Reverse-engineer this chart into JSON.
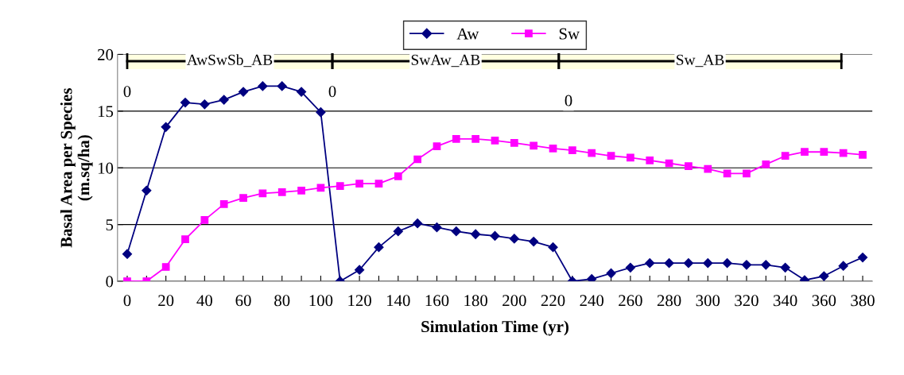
{
  "chart_data": {
    "type": "line",
    "xlabel": "Simulation Time (yr)",
    "ylabel": "Basal Area per Species\n(m.sq/ha)",
    "x": [
      0,
      10,
      20,
      30,
      40,
      50,
      60,
      70,
      80,
      90,
      100,
      110,
      120,
      130,
      140,
      150,
      160,
      170,
      180,
      190,
      200,
      210,
      220,
      230,
      240,
      250,
      260,
      270,
      280,
      290,
      300,
      310,
      320,
      330,
      340,
      350,
      360,
      370,
      380
    ],
    "series": [
      {
        "name": "Aw",
        "color": "#000080",
        "marker": "diamond",
        "values": [
          2.4,
          8.0,
          13.6,
          15.75,
          15.6,
          16.0,
          16.7,
          17.2,
          17.2,
          16.7,
          14.9,
          0,
          1.0,
          3.0,
          4.4,
          5.1,
          4.75,
          4.4,
          4.15,
          4.0,
          3.75,
          3.5,
          3.0,
          0,
          0.2,
          0.7,
          1.2,
          1.6,
          1.6,
          1.6,
          1.6,
          1.6,
          1.45,
          1.45,
          1.2,
          0.1,
          0.45,
          1.35,
          2.1
        ]
      },
      {
        "name": "Sw",
        "color": "#ff00ff",
        "marker": "square",
        "values": [
          0,
          0,
          1.26,
          3.7,
          5.4,
          6.8,
          7.35,
          7.75,
          7.85,
          8.0,
          8.24,
          8.4,
          8.6,
          8.6,
          9.25,
          10.75,
          11.9,
          12.55,
          12.55,
          12.4,
          12.2,
          11.95,
          11.7,
          11.55,
          11.3,
          11.05,
          10.9,
          10.65,
          10.4,
          10.15,
          9.9,
          9.5,
          9.5,
          10.3,
          11.05,
          11.4,
          11.4,
          11.3,
          11.15
        ]
      }
    ],
    "xlim": [
      -5,
      385
    ],
    "xticks": [
      0,
      {
        "value": 10,
        "label": null
      },
      20,
      {
        "value": 30,
        "label": null
      },
      40,
      {
        "value": 50,
        "label": null
      },
      60,
      {
        "value": 70,
        "label": null
      },
      80,
      {
        "value": 90,
        "label": null
      },
      100,
      {
        "value": 110,
        "label": null
      },
      120,
      {
        "value": 130,
        "label": null
      },
      140,
      {
        "value": 150,
        "label": null
      },
      160,
      {
        "value": 170,
        "label": null
      },
      180,
      {
        "value": 190,
        "label": null
      },
      200,
      {
        "value": 210,
        "label": null
      },
      220,
      {
        "value": 230,
        "label": null
      },
      240,
      {
        "value": 250,
        "label": null
      },
      260,
      {
        "value": 270,
        "label": null
      },
      280,
      {
        "value": 290,
        "label": null
      },
      300,
      {
        "value": 310,
        "label": null
      },
      320,
      {
        "value": 330,
        "label": null
      },
      340,
      {
        "value": 350,
        "label": null
      },
      360,
      {
        "value": 370,
        "label": null
      },
      380
    ],
    "ylim": [
      0,
      20
    ],
    "yticks": [
      0,
      5,
      10,
      15,
      20
    ],
    "grid": "y",
    "legend": "top",
    "bands": [
      {
        "axis": "x",
        "from": 0,
        "to": 106,
        "label": "AwSwSb_AB",
        "color": "#ffffe0"
      },
      {
        "axis": "x",
        "from": 106,
        "to": 223,
        "label": "SwAw_AB",
        "color": "#ffffe0"
      },
      {
        "axis": "x",
        "from": 223,
        "to": 369,
        "label": "Sw_AB",
        "color": "#ffffe0"
      }
    ],
    "annotations": [
      {
        "text": "0",
        "x": 0,
        "y": 16.6
      },
      {
        "text": "0",
        "x": 106,
        "y": 16.6
      },
      {
        "text": "0",
        "x": 228,
        "y": 15.8
      }
    ]
  }
}
